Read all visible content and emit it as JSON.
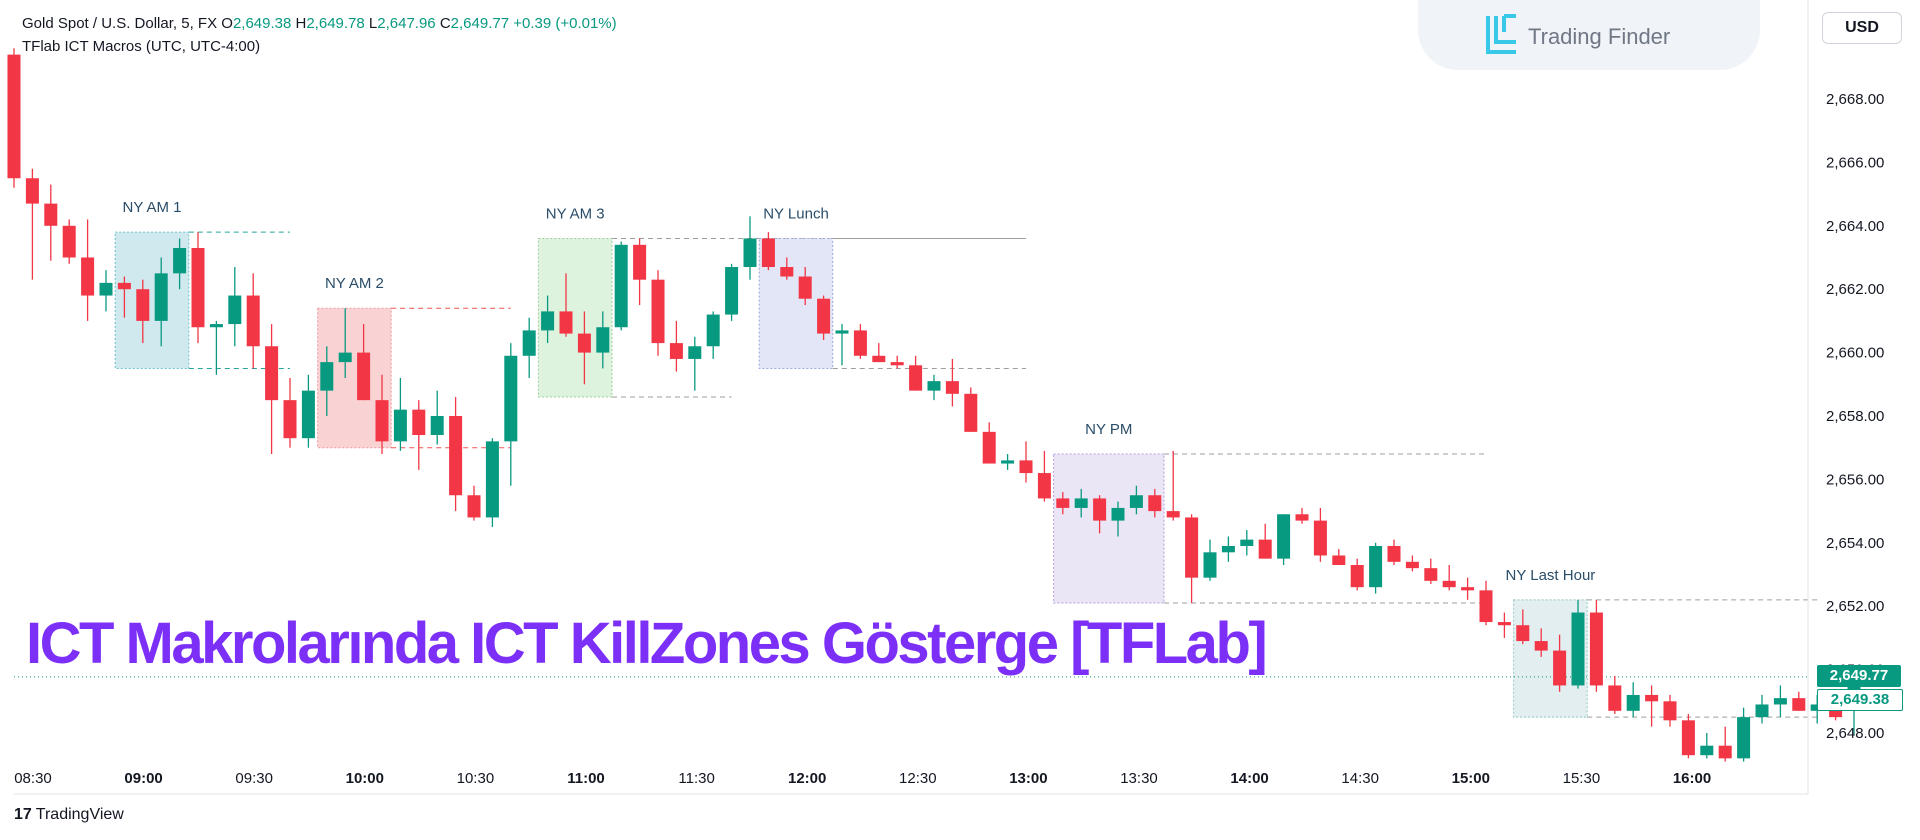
{
  "header": {
    "symbol": "Gold Spot / U.S. Dollar, 5, FX",
    "ohlc": {
      "o_label": "O",
      "o_value": "2,649.38",
      "h_label": "H",
      "h_value": "2,649.78",
      "l_label": "L",
      "l_value": "2,647.96",
      "c_label": "C",
      "c_value": "2,649.77",
      "change": "+0.39 (+0.01%)"
    },
    "indicator": "TFlab ICT Macros (UTC, UTC-4:00)"
  },
  "branding": {
    "logo_text": "Trading Finder",
    "logo_icon": "trading-finder-logo-icon",
    "currency_button": "USD",
    "footer_logo_mark": "17",
    "footer_logo_text": "TradingView"
  },
  "overlay_title": "ICT Makrolarında ICT KillZones Gösterge [TFLab]",
  "price_tags": {
    "close": "2,649.77",
    "open": "2,649.38"
  },
  "colors": {
    "bull": "#089981",
    "bear": "#f23645",
    "title": "#7b2ff7",
    "ny_am1": "#cfe9ef",
    "ny_am2": "#f9d3d3",
    "ny_am3": "#def3dd",
    "ny_lunch": "#e3e6f7",
    "ny_pm": "#ebe6f6",
    "ny_last_hour": "#e3eef0"
  },
  "chart_data": {
    "type": "candlestick",
    "symbol": "Gold Spot / U.S. Dollar",
    "timeframe": "5",
    "ylim": [
      2647.0,
      2669.5
    ],
    "y_ticks": [
      "2,648.00",
      "2,650.00",
      "2,652.00",
      "2,654.00",
      "2,656.00",
      "2,658.00",
      "2,660.00",
      "2,662.00",
      "2,664.00",
      "2,666.00",
      "2,668.00"
    ],
    "x_ticks": [
      {
        "label": "08:30",
        "bold": false
      },
      {
        "label": "09:00",
        "bold": true
      },
      {
        "label": "09:30",
        "bold": false
      },
      {
        "label": "10:00",
        "bold": true
      },
      {
        "label": "10:30",
        "bold": false
      },
      {
        "label": "11:00",
        "bold": true
      },
      {
        "label": "11:30",
        "bold": false
      },
      {
        "label": "12:00",
        "bold": true
      },
      {
        "label": "12:30",
        "bold": false
      },
      {
        "label": "13:00",
        "bold": true
      },
      {
        "label": "13:30",
        "bold": false
      },
      {
        "label": "14:00",
        "bold": true
      },
      {
        "label": "14:30",
        "bold": false
      },
      {
        "label": "15:00",
        "bold": true
      },
      {
        "label": "15:30",
        "bold": false
      },
      {
        "label": "16:00",
        "bold": true
      }
    ],
    "time_start": "08:30",
    "bar_minutes": 5,
    "candles": [
      [
        2669.4,
        2669.6,
        2665.2,
        2665.5
      ],
      [
        2665.5,
        2665.8,
        2662.3,
        2664.7
      ],
      [
        2664.7,
        2665.3,
        2662.9,
        2664.0
      ],
      [
        2664.0,
        2664.2,
        2662.8,
        2663.0
      ],
      [
        2663.0,
        2664.2,
        2661.0,
        2661.8
      ],
      [
        2661.8,
        2662.6,
        2661.3,
        2662.2
      ],
      [
        2662.2,
        2662.4,
        2661.1,
        2662.0
      ],
      [
        2662.0,
        2662.3,
        2660.3,
        2661.0
      ],
      [
        2661.0,
        2663.0,
        2660.2,
        2662.5
      ],
      [
        2662.5,
        2663.6,
        2662.0,
        2663.3
      ],
      [
        2663.3,
        2663.8,
        2660.3,
        2660.8
      ],
      [
        2660.8,
        2661.0,
        2659.3,
        2660.9
      ],
      [
        2660.9,
        2662.7,
        2660.2,
        2661.8
      ],
      [
        2661.8,
        2662.5,
        2659.5,
        2660.2
      ],
      [
        2660.2,
        2660.9,
        2656.8,
        2658.5
      ],
      [
        2658.5,
        2659.2,
        2657.0,
        2657.3
      ],
      [
        2657.3,
        2659.3,
        2657.0,
        2658.8
      ],
      [
        2658.8,
        2660.2,
        2658.0,
        2659.7
      ],
      [
        2659.7,
        2661.4,
        2659.2,
        2660.0
      ],
      [
        2660.0,
        2660.9,
        2658.5,
        2658.5
      ],
      [
        2658.5,
        2659.3,
        2656.8,
        2657.2
      ],
      [
        2657.2,
        2659.2,
        2656.9,
        2658.2
      ],
      [
        2658.2,
        2658.5,
        2656.3,
        2657.4
      ],
      [
        2657.4,
        2658.8,
        2657.1,
        2658.0
      ],
      [
        2658.0,
        2658.6,
        2655.0,
        2655.5
      ],
      [
        2655.5,
        2655.8,
        2654.7,
        2654.8
      ],
      [
        2654.8,
        2657.3,
        2654.5,
        2657.2
      ],
      [
        2657.2,
        2660.3,
        2655.8,
        2659.9
      ],
      [
        2659.9,
        2661.1,
        2659.2,
        2660.7
      ],
      [
        2660.7,
        2661.8,
        2660.3,
        2661.3
      ],
      [
        2661.3,
        2662.5,
        2660.5,
        2660.6
      ],
      [
        2660.6,
        2661.3,
        2659.0,
        2660.0
      ],
      [
        2660.0,
        2661.3,
        2659.5,
        2660.8
      ],
      [
        2660.8,
        2663.5,
        2660.7,
        2663.4
      ],
      [
        2663.4,
        2663.6,
        2661.5,
        2662.3
      ],
      [
        2662.3,
        2662.6,
        2659.9,
        2660.3
      ],
      [
        2660.3,
        2661.0,
        2659.4,
        2659.8
      ],
      [
        2659.8,
        2660.5,
        2658.8,
        2660.2
      ],
      [
        2660.2,
        2661.3,
        2659.8,
        2661.2
      ],
      [
        2661.2,
        2662.8,
        2661.0,
        2662.7
      ],
      [
        2662.7,
        2664.3,
        2662.3,
        2663.6
      ],
      [
        2663.6,
        2663.8,
        2662.6,
        2662.7
      ],
      [
        2662.7,
        2663.0,
        2662.3,
        2662.4
      ],
      [
        2662.4,
        2662.7,
        2661.5,
        2661.7
      ],
      [
        2661.7,
        2661.8,
        2660.4,
        2660.6
      ],
      [
        2660.6,
        2660.9,
        2659.6,
        2660.7
      ],
      [
        2660.7,
        2660.9,
        2659.8,
        2659.9
      ],
      [
        2659.9,
        2660.3,
        2659.7,
        2659.7
      ],
      [
        2659.7,
        2659.9,
        2659.5,
        2659.6
      ],
      [
        2659.6,
        2659.9,
        2658.8,
        2658.8
      ],
      [
        2658.8,
        2659.3,
        2658.5,
        2659.1
      ],
      [
        2659.1,
        2659.8,
        2658.3,
        2658.7
      ],
      [
        2658.7,
        2658.9,
        2657.5,
        2657.5
      ],
      [
        2657.5,
        2657.8,
        2656.5,
        2656.5
      ],
      [
        2656.5,
        2656.8,
        2656.3,
        2656.6
      ],
      [
        2656.6,
        2657.2,
        2655.9,
        2656.2
      ],
      [
        2656.2,
        2656.9,
        2655.3,
        2655.4
      ],
      [
        2655.4,
        2655.6,
        2654.9,
        2655.1
      ],
      [
        2655.1,
        2655.7,
        2654.8,
        2655.4
      ],
      [
        2655.4,
        2655.5,
        2654.3,
        2654.7
      ],
      [
        2654.7,
        2655.3,
        2654.2,
        2655.1
      ],
      [
        2655.1,
        2655.8,
        2654.9,
        2655.5
      ],
      [
        2655.5,
        2655.7,
        2654.8,
        2655.0
      ],
      [
        2655.0,
        2656.9,
        2654.7,
        2654.8
      ],
      [
        2654.8,
        2654.9,
        2652.1,
        2652.9
      ],
      [
        2652.9,
        2654.1,
        2652.8,
        2653.7
      ],
      [
        2653.7,
        2654.2,
        2653.4,
        2653.9
      ],
      [
        2653.9,
        2654.4,
        2653.6,
        2654.1
      ],
      [
        2654.1,
        2654.6,
        2653.5,
        2653.5
      ],
      [
        2653.5,
        2654.9,
        2653.3,
        2654.9
      ],
      [
        2654.9,
        2655.1,
        2654.6,
        2654.7
      ],
      [
        2654.7,
        2655.1,
        2653.4,
        2653.6
      ],
      [
        2653.6,
        2653.8,
        2653.3,
        2653.3
      ],
      [
        2653.3,
        2653.5,
        2652.5,
        2652.6
      ],
      [
        2652.6,
        2654.0,
        2652.4,
        2653.9
      ],
      [
        2653.9,
        2654.1,
        2653.3,
        2653.4
      ],
      [
        2653.4,
        2653.6,
        2653.1,
        2653.2
      ],
      [
        2653.2,
        2653.5,
        2652.7,
        2652.8
      ],
      [
        2652.8,
        2653.3,
        2652.5,
        2652.6
      ],
      [
        2652.6,
        2652.9,
        2652.2,
        2652.5
      ],
      [
        2652.5,
        2652.8,
        2651.4,
        2651.5
      ],
      [
        2651.5,
        2651.8,
        2651.0,
        2651.4
      ],
      [
        2651.4,
        2651.9,
        2650.8,
        2650.9
      ],
      [
        2650.9,
        2651.3,
        2650.4,
        2650.6
      ],
      [
        2650.6,
        2651.1,
        2649.3,
        2649.5
      ],
      [
        2649.5,
        2652.2,
        2649.4,
        2651.8
      ],
      [
        2651.8,
        2652.2,
        2649.3,
        2649.5
      ],
      [
        2649.5,
        2649.8,
        2648.6,
        2648.7
      ],
      [
        2648.7,
        2649.6,
        2648.5,
        2649.2
      ],
      [
        2649.2,
        2649.5,
        2648.2,
        2649.0
      ],
      [
        2649.0,
        2649.2,
        2648.2,
        2648.4
      ],
      [
        2648.4,
        2648.6,
        2647.2,
        2647.3
      ],
      [
        2647.3,
        2648.0,
        2647.2,
        2647.6
      ],
      [
        2647.6,
        2648.2,
        2647.1,
        2647.2
      ],
      [
        2647.2,
        2648.8,
        2647.1,
        2648.5
      ],
      [
        2648.5,
        2649.2,
        2648.3,
        2648.9
      ],
      [
        2648.9,
        2649.5,
        2648.5,
        2649.1
      ],
      [
        2649.1,
        2649.3,
        2648.7,
        2648.7
      ],
      [
        2648.7,
        2649.2,
        2648.3,
        2648.9
      ],
      [
        2648.9,
        2649.1,
        2648.4,
        2648.5
      ],
      [
        2649.38,
        2649.78,
        2647.96,
        2649.77
      ]
    ],
    "macros": [
      {
        "label": "NY AM 1",
        "start_bar": 6,
        "end_bar": 9,
        "high": 2663.8,
        "low": 2659.5,
        "ext_high_bar": 15,
        "ext_low_bar": 15,
        "color": "ny_am1",
        "line": "#26a69a",
        "edge": "#6cc4c9"
      },
      {
        "label": "NY AM 2",
        "start_bar": 17,
        "end_bar": 20,
        "high": 2661.4,
        "low": 2657.0,
        "ext_high_bar": 27,
        "ext_low_bar": 27,
        "color": "ny_am2",
        "line": "#ef5350",
        "edge": "#ef9a9a"
      },
      {
        "label": "NY AM 3",
        "start_bar": 29,
        "end_bar": 32,
        "high": 2663.6,
        "low": 2658.6,
        "ext_high_bar": 55,
        "ext_low_bar": 39,
        "color": "ny_am3",
        "line": "#9e9e9e",
        "edge": "#9ccc9c"
      },
      {
        "label": "NY Lunch",
        "start_bar": 41,
        "end_bar": 44,
        "high": 2663.6,
        "low": 2659.5,
        "ext_high_bar": 55,
        "ext_low_bar": 55,
        "color": "ny_lunch",
        "line": "#9e9e9e",
        "edge": "#9fa8da"
      },
      {
        "label": "NY PM",
        "start_bar": 57,
        "end_bar": 62,
        "high": 2656.8,
        "low": 2652.1,
        "ext_high_bar": 80,
        "ext_low_bar": 80,
        "color": "ny_pm",
        "line": "#9e9e9e",
        "edge": "#b39ddb"
      },
      {
        "label": "NY Last Hour",
        "start_bar": 82,
        "end_bar": 85,
        "high": 2652.2,
        "low": 2648.5,
        "ext_high_bar": 98,
        "ext_low_bar": 98,
        "color": "ny_last_hour",
        "line": "#9e9e9e",
        "edge": "#90c4c4"
      }
    ],
    "close_line": 2649.77,
    "open_line": 2649.38,
    "grid": false,
    "legend": "none"
  }
}
